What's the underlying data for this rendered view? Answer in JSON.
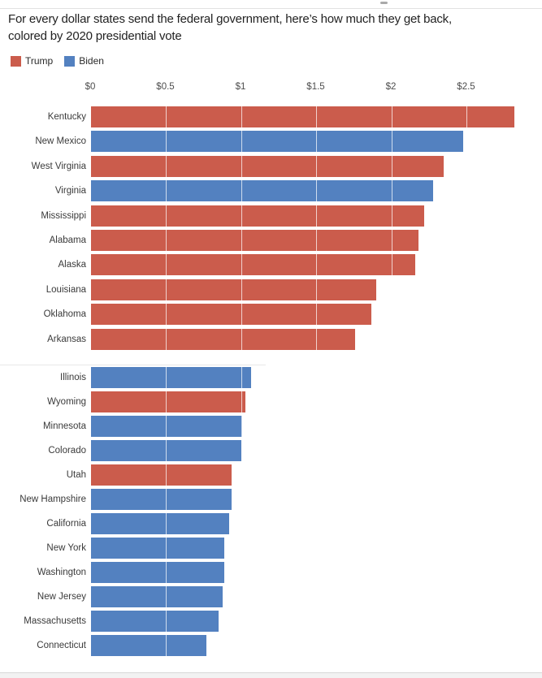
{
  "title": {
    "line1": "For every dollar states send the federal government, here’s how much they get back,",
    "line2": "colored by 2020 presidential vote"
  },
  "legend": [
    {
      "label": "Trump",
      "color": "#cb5c4c"
    },
    {
      "label": "Biden",
      "color": "#5381c0"
    }
  ],
  "chart_data": {
    "type": "bar",
    "orientation": "horizontal",
    "title": "For every dollar states send the federal government, here’s how much they get back, colored by 2020 presidential vote",
    "unit": "dollars received back per $1 sent",
    "x_ticks": [
      "$0",
      "$0.5",
      "$1",
      "$1.5",
      "$2",
      "$2.5"
    ],
    "x_tick_values": [
      0,
      0.5,
      1,
      1.5,
      2,
      2.5
    ],
    "xlim": [
      0,
      3.0
    ],
    "grid": "vertical-white-over-bars",
    "legend_position": "top-left",
    "colors": {
      "Trump": "#cb5c4c",
      "Biden": "#5381c0"
    },
    "sections": [
      {
        "rows": [
          {
            "state": "Kentucky",
            "value": 2.82,
            "vote": "Trump"
          },
          {
            "state": "New Mexico",
            "value": 2.48,
            "vote": "Biden"
          },
          {
            "state": "West Virginia",
            "value": 2.35,
            "vote": "Trump"
          },
          {
            "state": "Virginia",
            "value": 2.28,
            "vote": "Biden"
          },
          {
            "state": "Mississippi",
            "value": 2.22,
            "vote": "Trump"
          },
          {
            "state": "Alabama",
            "value": 2.18,
            "vote": "Trump"
          },
          {
            "state": "Alaska",
            "value": 2.16,
            "vote": "Trump"
          },
          {
            "state": "Louisiana",
            "value": 1.9,
            "vote": "Trump"
          },
          {
            "state": "Oklahoma",
            "value": 1.87,
            "vote": "Trump"
          },
          {
            "state": "Arkansas",
            "value": 1.76,
            "vote": "Trump"
          }
        ]
      },
      {
        "rows": [
          {
            "state": "Illinois",
            "value": 1.07,
            "vote": "Biden"
          },
          {
            "state": "Wyoming",
            "value": 1.03,
            "vote": "Trump"
          },
          {
            "state": "Minnesota",
            "value": 1.01,
            "vote": "Biden"
          },
          {
            "state": "Colorado",
            "value": 1.0,
            "vote": "Biden"
          },
          {
            "state": "Utah",
            "value": 0.94,
            "vote": "Trump"
          },
          {
            "state": "New Hampshire",
            "value": 0.94,
            "vote": "Biden"
          },
          {
            "state": "California",
            "value": 0.92,
            "vote": "Biden"
          },
          {
            "state": "New York",
            "value": 0.89,
            "vote": "Biden"
          },
          {
            "state": "Washington",
            "value": 0.89,
            "vote": "Biden"
          },
          {
            "state": "New Jersey",
            "value": 0.88,
            "vote": "Biden"
          },
          {
            "state": "Massachusetts",
            "value": 0.85,
            "vote": "Biden"
          },
          {
            "state": "Connecticut",
            "value": 0.77,
            "vote": "Biden"
          }
        ]
      }
    ]
  }
}
